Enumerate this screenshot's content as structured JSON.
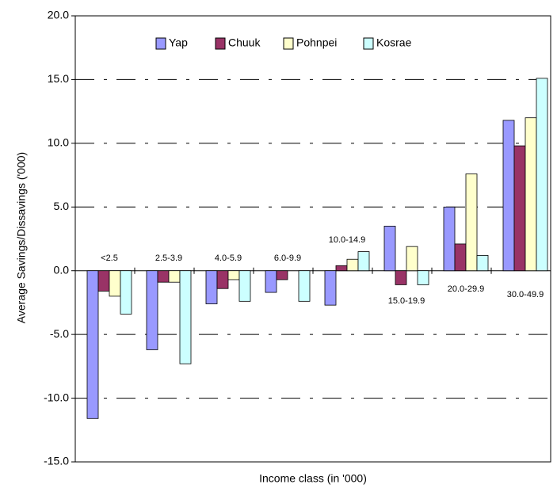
{
  "chart_data": {
    "type": "bar",
    "y_label": "Average Savings/Dissavings ('000)",
    "x_label": "Income class (in '000)",
    "categories": [
      "<2.5",
      "2.5-3.9",
      "4.0-5.9",
      "6.0-9.9",
      "10.0-14.9",
      "15.0-19.9",
      "20.0-29.9",
      "30.0-49.9"
    ],
    "series": [
      {
        "name": "Yap",
        "color": "#9999ff",
        "values": [
          -11.6,
          -6.2,
          -2.6,
          -1.7,
          -2.7,
          3.5,
          5.0,
          11.8
        ]
      },
      {
        "name": "Chuuk",
        "color": "#993366",
        "values": [
          -1.6,
          -0.9,
          -1.4,
          -0.7,
          0.4,
          -1.1,
          2.1,
          9.8
        ]
      },
      {
        "name": "Pohnpei",
        "color": "#ffffcc",
        "values": [
          -2.0,
          -0.9,
          -0.7,
          0,
          0.9,
          1.9,
          7.6,
          12.0
        ]
      },
      {
        "name": "Kosrae",
        "color": "#ccffff",
        "values": [
          -3.4,
          -7.3,
          -2.4,
          -2.4,
          1.5,
          -1.1,
          1.2,
          15.1
        ]
      }
    ],
    "ylim": [
      -15,
      20
    ],
    "yticks": [
      {
        "value": -15,
        "label": "-15.0"
      },
      {
        "value": -10,
        "label": "-10.0"
      },
      {
        "value": -5,
        "label": "-5.0"
      },
      {
        "value": 0,
        "label": "0.0"
      },
      {
        "value": 5,
        "label": "5.0"
      },
      {
        "value": 10,
        "label": "10.0"
      },
      {
        "value": 15,
        "label": "15.0"
      },
      {
        "value": 20,
        "label": "20.0"
      }
    ],
    "grid": true,
    "legend": "top"
  }
}
